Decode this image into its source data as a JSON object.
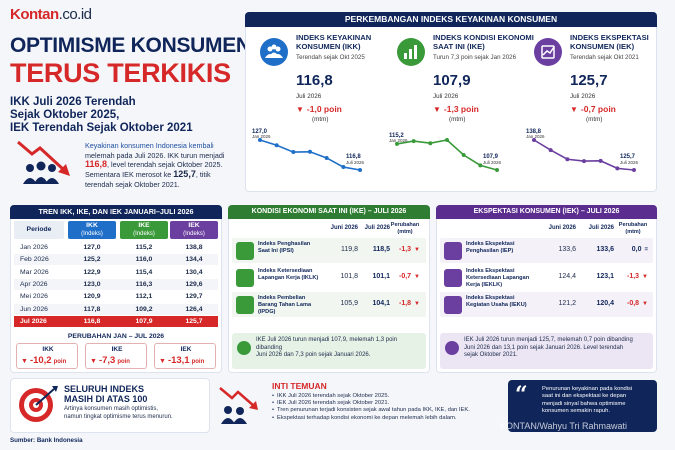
{
  "brand": {
    "name": "Kontan",
    "domain": ".co.id"
  },
  "headline": {
    "line1": "OPTIMISME KONSUMEN",
    "line2": "TERUS TERKIKIS"
  },
  "subtitle": {
    "l1": "IKK Juli 2026 Terendah",
    "l2": "Sejak Oktober 2025,",
    "l3": "IEK Terendah Sejak Oktober 2021"
  },
  "intro": {
    "p1": "Keyakinan konsumen Indonesia kembali",
    "p2": "melemah pada Juli 2026. IKK turun menjadi",
    "v1": "116,8",
    "p3": ", level terendah sejak Oktober 2025.",
    "p4": "Sementara IEK merosot ke",
    "v2": "125,7",
    "p5": ", titik",
    "p6": "terendah sejak Oktober 2021."
  },
  "panel_top": {
    "title": "PERKEMBANGAN INDEKS KEYAKINAN KONSUMEN"
  },
  "indicators": [
    {
      "title1": "INDEKS KEYAKINAN",
      "title2": "KONSUMEN (IKK)",
      "since": "Terendah sejak Okt 2025",
      "value": "116,8",
      "month": "Juli 2026",
      "change": "-1,0 poin",
      "unit": "(mtm)",
      "start_val": "127,0",
      "start_month": "Jan 2026",
      "end_val": "116,8",
      "end_month": "Juli 2026",
      "color": "#1f6fc9",
      "chart_data": {
        "type": "line",
        "x": [
          "Jan 2026",
          "Feb 2026",
          "Mar 2026",
          "Apr 2026",
          "Mei 2026",
          "Jun 2026",
          "Jul 2026"
        ],
        "values": [
          127.0,
          125.2,
          122.9,
          123.0,
          120.9,
          117.8,
          116.8
        ]
      }
    },
    {
      "title1": "INDEKS KONDISI EKONOMI",
      "title2": "SAAT INI (IKE)",
      "since": "Turun 7,3 poin sejak Jan 2026",
      "value": "107,9",
      "month": "Juli 2026",
      "change": "-1,3 poin",
      "unit": "(mtm)",
      "start_val": "115,2",
      "start_month": "Jan 2026",
      "end_val": "107,9",
      "end_month": "Juli 2026",
      "color": "#3a9a3a",
      "chart_data": {
        "type": "line",
        "x": [
          "Jan 2026",
          "Feb 2026",
          "Mar 2026",
          "Apr 2026",
          "Mei 2026",
          "Jun 2026",
          "Jul 2026"
        ],
        "values": [
          115.2,
          116.0,
          115.4,
          116.3,
          112.1,
          109.2,
          107.9
        ]
      }
    },
    {
      "title1": "INDEKS EKSPEKTASI",
      "title2": "KONSUMEN (IEK)",
      "since": "Terendah sejak Okt 2021",
      "value": "125,7",
      "month": "Juli 2026",
      "change": "-0,7 poin",
      "unit": "(mtm)",
      "start_val": "138,8",
      "start_month": "Jan 2026",
      "end_val": "125,7",
      "end_month": "Juli 2026",
      "color": "#6b3fa0",
      "chart_data": {
        "type": "line",
        "x": [
          "Jan 2026",
          "Feb 2026",
          "Mar 2026",
          "Apr 2026",
          "Mei 2026",
          "Jun 2026",
          "Jul 2026"
        ],
        "values": [
          138.8,
          134.4,
          130.4,
          129.6,
          129.7,
          126.4,
          125.7
        ]
      }
    }
  ],
  "trend_table": {
    "title": "TREN IKK, IKE, DAN IEK JANUARI–JULI 2026",
    "headers": [
      {
        "a": "Periode",
        "b": ""
      },
      {
        "a": "IKK",
        "b": "(Indeks)"
      },
      {
        "a": "IKE",
        "b": "(Indeks)"
      },
      {
        "a": "IEK",
        "b": "(Indeks)"
      }
    ],
    "rows": [
      [
        "Jan 2026",
        "127,0",
        "115,2",
        "138,8"
      ],
      [
        "Feb 2026",
        "125,2",
        "116,0",
        "134,4"
      ],
      [
        "Mar 2026",
        "122,9",
        "115,4",
        "130,4"
      ],
      [
        "Apr 2026",
        "123,0",
        "116,3",
        "129,6"
      ],
      [
        "Mei 2026",
        "120,9",
        "112,1",
        "129,7"
      ],
      [
        "Jun 2026",
        "117,8",
        "109,2",
        "126,4"
      ],
      [
        "Jul 2026",
        "116,8",
        "107,9",
        "125,7"
      ]
    ],
    "change_title": "PERUBAHAN JAN – JUL 2026",
    "changes": [
      {
        "name": "IKK",
        "val": "-10,2",
        "unit": "poin"
      },
      {
        "name": "IKE",
        "val": "-7,3",
        "unit": "poin"
      },
      {
        "name": "IEK",
        "val": "-13,1",
        "unit": "poin"
      }
    ]
  },
  "ike_panel": {
    "title": "KONDISI EKONOMI SAAT INI (IKE) – JULI 2026",
    "col_jun": "Juni 2026",
    "col_jul": "Juli 2026",
    "col_chg1": "Perubahan",
    "col_chg2": "(mtm)",
    "rows": [
      {
        "l1": "Indeks Penghasilan",
        "l2": "Saat Ini (IPSI)",
        "l3": "",
        "jun": "119,8",
        "jul": "118,5",
        "chg": "-1,3"
      },
      {
        "l1": "Indeks Ketersediaan",
        "l2": "Lapangan Kerja (IKLK)",
        "l3": "",
        "jun": "101,8",
        "jul": "101,1",
        "chg": "-0,7"
      },
      {
        "l1": "Indeks Pembelian",
        "l2": "Barang Tahan Lama",
        "l3": "(IPDG)",
        "jun": "105,9",
        "jul": "104,1",
        "chg": "-1,8"
      }
    ],
    "note1": "IKE Juli 2026 turun menjadi 107,9, melemah 1,3 poin dibanding",
    "note2": "Juni 2026 dan 7,3 poin sejak Januari 2026."
  },
  "iek_panel": {
    "title": "EKSPEKTASI KONSUMEN (IEK) – JULI 2026",
    "col_jun": "Juni 2026",
    "col_jul": "Juli 2026",
    "col_chg1": "Perubahan",
    "col_chg2": "(mtm)",
    "rows": [
      {
        "l1": "Indeks Ekspektasi",
        "l2": "Penghasilan (IEP)",
        "l3": "",
        "jun": "133,6",
        "jul": "133,6",
        "chg": "0,0"
      },
      {
        "l1": "Indeks Ekspektasi",
        "l2": "Ketersediaan Lapangan",
        "l3": "Kerja (IEKLK)",
        "jun": "124,4",
        "jul": "123,1",
        "chg": "-1,3"
      },
      {
        "l1": "Indeks Ekspektasi",
        "l2": "Kegiatan Usaha (IEKU)",
        "l3": "",
        "jun": "121,2",
        "jul": "120,4",
        "chg": "-0,8"
      }
    ],
    "note1": "IEK Juli 2026 turun menjadi 125,7, melemah 0,7 poin dibanding",
    "note2": "Juni 2026 dan 13,1 poin sejak Januari 2026. Level terendah",
    "note3": "sejak Oktober 2021."
  },
  "bottom_left": {
    "t1": "SELURUH INDEKS",
    "t2": "MASIH DI ATAS 100",
    "d1": "Artinya konsumen masih optimistis,",
    "d2": "namun tingkat optimisme terus menurun."
  },
  "findings": {
    "title": "INTI TEMUAN",
    "items": [
      "IKK Juli 2026 terendah sejak Oktober 2025.",
      "IEK Juli 2026 terendah sejak Oktober 2021.",
      "Tren penurunan terjadi konsisten sejak awal tahun pada IKK, IKE, dan IEK.",
      "Ekspektasi terhadap kondisi ekonomi ke depan melemah lebih dalam."
    ]
  },
  "quote": {
    "l1": "Penurunan keyakinan pada kondisi",
    "l2": "saat ini dan ekspektasi ke depan",
    "l3": "menjadi sinyal bahwa optimisme",
    "l4": "konsumen semakin rapuh."
  },
  "source": "Sumber: Bank Indonesia",
  "watermark": "KONTAN/Wahyu Tri Rahmawati",
  "colors": {
    "navy": "#10265a",
    "red": "#d62828",
    "blue": "#1f6fc9",
    "green": "#3a9a3a",
    "purple": "#6b3fa0"
  }
}
